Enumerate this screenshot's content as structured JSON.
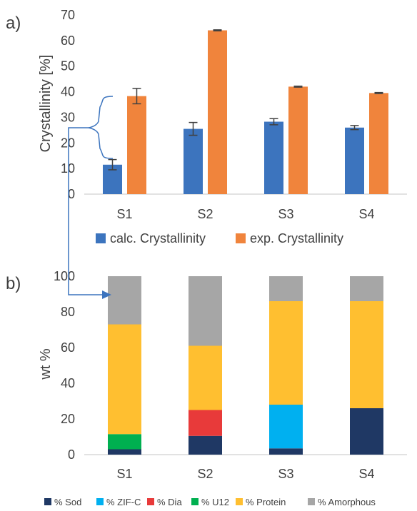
{
  "chart_data": [
    {
      "panel_label": "a)",
      "type": "bar",
      "categories": [
        "S1",
        "S2",
        "S3",
        "S4"
      ],
      "ylabel": "Crystallinity [%]",
      "ylim": [
        0,
        70
      ],
      "yticks": [
        0,
        10,
        20,
        30,
        40,
        50,
        60,
        70
      ],
      "grid": false,
      "legend_position": "bottom",
      "series": [
        {
          "name": "calc. Crystallinity",
          "color": "#3C74BE",
          "values": [
            11.5,
            25.5,
            28.3,
            26.0
          ],
          "errors": [
            2.0,
            2.5,
            1.2,
            0.8
          ]
        },
        {
          "name": "exp. Crystallinity",
          "color": "#F0843C",
          "values": [
            38.3,
            64.0,
            42.0,
            39.5
          ],
          "errors": [
            3.0,
            0.2,
            0.2,
            0.2
          ]
        }
      ]
    },
    {
      "panel_label": "b)",
      "type": "bar",
      "stacked": true,
      "categories": [
        "S1",
        "S2",
        "S3",
        "S4"
      ],
      "ylabel": "wt %",
      "ylim": [
        0,
        100
      ],
      "yticks": [
        0,
        20,
        40,
        60,
        80,
        100
      ],
      "grid": false,
      "legend_position": "bottom",
      "series": [
        {
          "name": "% Sod",
          "color": "#1F3864",
          "values": [
            3,
            10.5,
            3.5,
            26
          ]
        },
        {
          "name": "% ZIF-C",
          "color": "#00B0F0",
          "values": [
            0,
            0,
            24.5,
            0
          ]
        },
        {
          "name": "% Dia",
          "color": "#E83A3A",
          "values": [
            0,
            14.5,
            0,
            0
          ]
        },
        {
          "name": "% U12",
          "color": "#00B050",
          "values": [
            8.5,
            0,
            0,
            0
          ]
        },
        {
          "name": "% Protein",
          "color": "#FFBF30",
          "values": [
            61.5,
            36,
            58,
            60
          ]
        },
        {
          "name": "% Amorphous",
          "color": "#A6A6A6",
          "values": [
            27,
            39,
            14,
            14
          ]
        }
      ]
    }
  ],
  "annotation": {
    "color": "#3C74BE"
  }
}
